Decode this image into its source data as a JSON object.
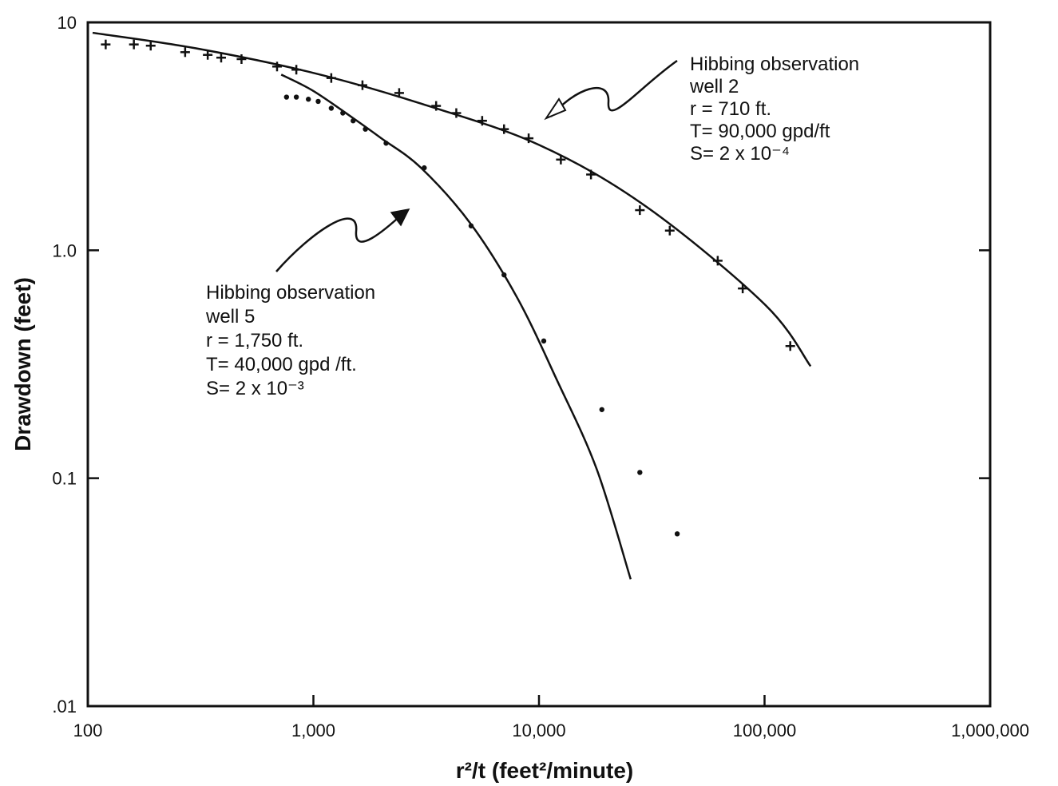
{
  "chart_data": {
    "type": "scatter",
    "xscale": "log",
    "yscale": "log",
    "xlim": [
      100,
      1000000
    ],
    "ylim": [
      0.01,
      10
    ],
    "xlabel": "r²/t (feet²/minute)",
    "ylabel": "Drawdown (feet)",
    "xticks": [
      {
        "value": 100,
        "label": "100"
      },
      {
        "value": 1000,
        "label": "1,000"
      },
      {
        "value": 10000,
        "label": "10,000"
      },
      {
        "value": 100000,
        "label": "100,000"
      },
      {
        "value": 1000000,
        "label": "1,000,000"
      }
    ],
    "yticks": [
      {
        "value": 10,
        "label": "10"
      },
      {
        "value": 1,
        "label": "1.0"
      },
      {
        "value": 0.1,
        "label": "0.1"
      },
      {
        "value": 0.01,
        "label": ".01"
      }
    ],
    "grid": false,
    "series": [
      {
        "marker": "plus",
        "points": [
          [
            120,
            8.0
          ],
          [
            160,
            8.0
          ],
          [
            190,
            7.9
          ],
          [
            270,
            7.4
          ],
          [
            340,
            7.2
          ],
          [
            390,
            7.0
          ],
          [
            480,
            6.9
          ],
          [
            690,
            6.4
          ],
          [
            840,
            6.2
          ],
          [
            1200,
            5.7
          ],
          [
            1650,
            5.3
          ],
          [
            2400,
            4.9
          ],
          [
            3500,
            4.3
          ],
          [
            4300,
            4.0
          ],
          [
            5600,
            3.7
          ],
          [
            7000,
            3.4
          ],
          [
            9000,
            3.1
          ],
          [
            12500,
            2.5
          ],
          [
            17000,
            2.15
          ],
          [
            28000,
            1.5
          ],
          [
            38000,
            1.22
          ],
          [
            62000,
            0.9
          ],
          [
            80000,
            0.68
          ],
          [
            130000,
            0.38
          ]
        ],
        "curve": [
          [
            105,
            9.0
          ],
          [
            300,
            7.7
          ],
          [
            1000,
            6.0
          ],
          [
            3000,
            4.4
          ],
          [
            10000,
            2.9
          ],
          [
            30000,
            1.55
          ],
          [
            100000,
            0.58
          ],
          [
            160000,
            0.31
          ]
        ]
      },
      {
        "marker": "dot",
        "points": [
          [
            760,
            4.7
          ],
          [
            840,
            4.7
          ],
          [
            950,
            4.6
          ],
          [
            1050,
            4.5
          ],
          [
            1200,
            4.2
          ],
          [
            1350,
            4.0
          ],
          [
            1500,
            3.7
          ],
          [
            1700,
            3.4
          ],
          [
            2100,
            2.95
          ],
          [
            3100,
            2.3
          ],
          [
            5000,
            1.28
          ],
          [
            7000,
            0.78
          ],
          [
            10500,
            0.4
          ],
          [
            19000,
            0.2
          ],
          [
            28000,
            0.106
          ],
          [
            41000,
            0.057
          ]
        ],
        "curve": [
          [
            720,
            5.9
          ],
          [
            1000,
            5.0
          ],
          [
            1500,
            3.8
          ],
          [
            2000,
            3.1
          ],
          [
            3000,
            2.3
          ],
          [
            5000,
            1.3
          ],
          [
            8000,
            0.62
          ],
          [
            12000,
            0.27
          ],
          [
            18000,
            0.11
          ],
          [
            25500,
            0.036
          ]
        ]
      }
    ],
    "annotations": [
      {
        "lines": [
          "Hibbing observation",
          "well 2",
          "r = 710 ft.",
          "T= 90,000 gpd/ft",
          "S= 2 x 10⁻⁴"
        ]
      },
      {
        "lines": [
          "Hibbing observation",
          "well 5",
          "r = 1,750 ft.",
          "T= 40,000 gpd /ft.",
          "S= 2 x 10⁻³"
        ]
      }
    ]
  }
}
